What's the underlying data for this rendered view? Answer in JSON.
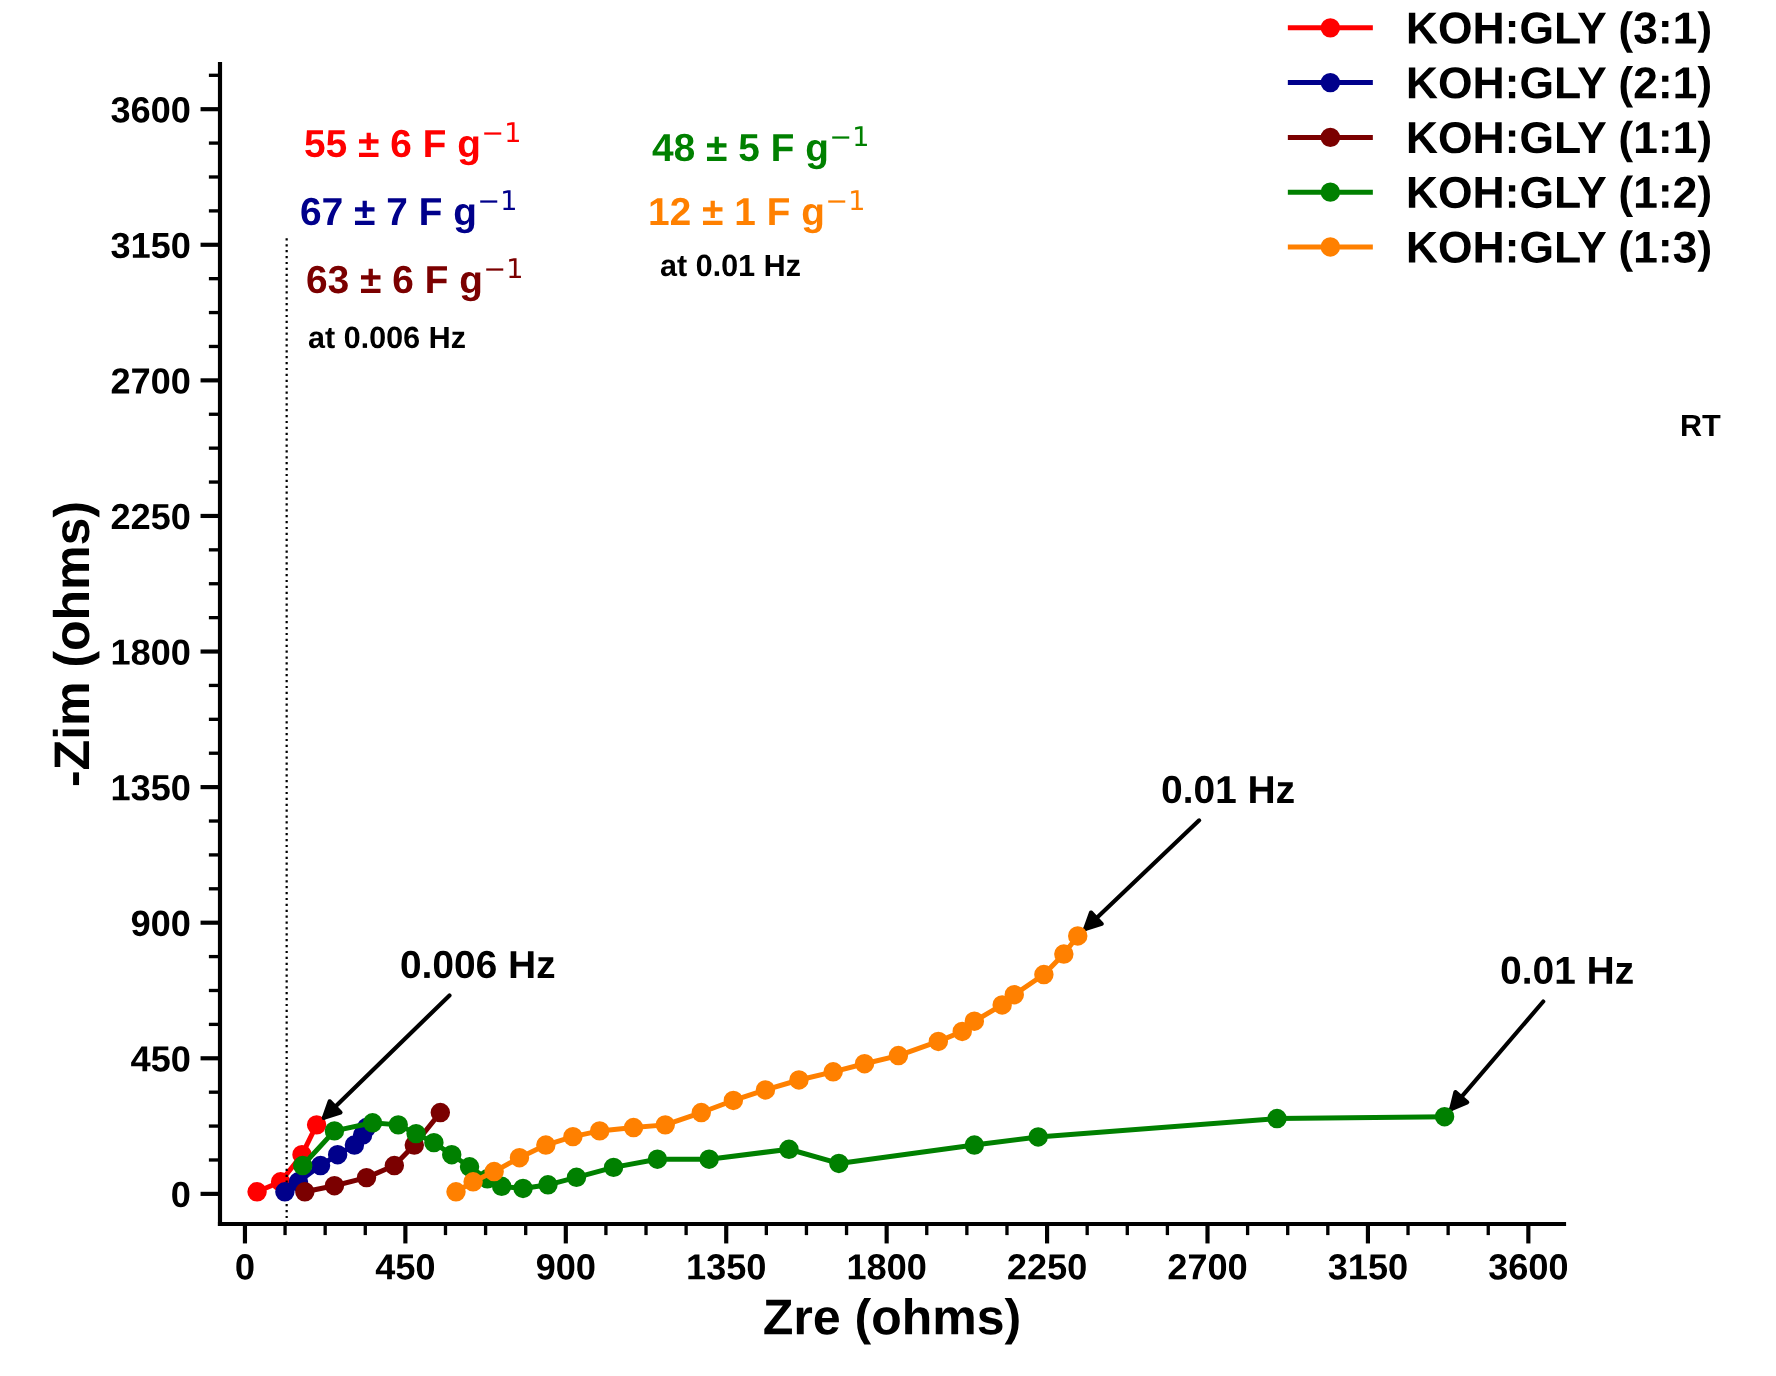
{
  "chart_data": {
    "type": "line",
    "xlabel": "Zre (ohms)",
    "ylabel": "-Zim (ohms)",
    "xlim": [
      -70,
      3700
    ],
    "ylim": [
      -100,
      3750
    ],
    "xticks": [
      0,
      450,
      900,
      1350,
      1800,
      2250,
      2700,
      3150,
      3600
    ],
    "yticks": [
      0,
      450,
      900,
      1350,
      1800,
      2250,
      2700,
      3150,
      3600
    ],
    "grid": false,
    "legend": "top right",
    "marker": "circle",
    "line_style": "solid",
    "series": [
      {
        "name": "KOH:GLY (3:1)",
        "color": "#ff0000",
        "x": [
          34,
          100,
          160,
          201
        ],
        "values": [
          7,
          40,
          130,
          229
        ]
      },
      {
        "name": "KOH:GLY (2:1)",
        "color": "#00008b",
        "x": [
          112,
          150,
          212,
          260,
          307,
          330,
          341
        ],
        "values": [
          7,
          40,
          94,
          130,
          162,
          195,
          220
        ]
      },
      {
        "name": "KOH:GLY (1:1)",
        "color": "#7b0000",
        "x": [
          168,
          251,
          341,
          419,
          475,
          548
        ],
        "values": [
          7,
          27,
          54,
          94,
          162,
          270
        ]
      },
      {
        "name": "KOH:GLY (1:2)",
        "color": "#008000",
        "x": [
          162,
          251,
          358,
          430,
          480,
          530,
          580,
          630,
          680,
          720,
          780,
          850,
          930,
          1034,
          1157,
          1302,
          1526,
          1666,
          2046,
          2225,
          2895,
          3365
        ],
        "values": [
          94,
          209,
          236,
          229,
          200,
          170,
          130,
          90,
          50,
          25,
          18,
          30,
          55,
          88,
          115,
          115,
          148,
          101,
          162,
          189,
          250,
          256
        ]
      },
      {
        "name": "KOH:GLY (1:3)",
        "color": "#ff8000",
        "x": [
          592,
          640,
          699,
          770,
          844,
          920,
          995,
          1090,
          1179,
          1280,
          1370,
          1460,
          1554,
          1650,
          1738,
          1833,
          1945,
          2012,
          2046,
          2124,
          2158,
          2241,
          2297,
          2336
        ],
        "values": [
          7,
          40,
          74,
          120,
          162,
          190,
          209,
          220,
          229,
          270,
          310,
          345,
          378,
          405,
          432,
          459,
          506,
          539,
          573,
          627,
          661,
          728,
          796,
          856
        ]
      }
    ],
    "ref_lines": [
      {
        "axis": "x",
        "value": 117,
        "line_style": "dotted",
        "color": "#000000"
      }
    ],
    "annotations": [
      "55 ± 6 F g$^{−1}$",
      "67 ± 7 F g$^{−1}$",
      "63 ± 6 F g$^{−1}$",
      "48 ± 5 F g$^{−1}$",
      "12 ± 1 F g$^{−1}$",
      "at 0.006 Hz",
      "at 0.01 Hz",
      "RT",
      {
        "text": "0.006 Hz",
        "x": 201,
        "y": 229
      },
      {
        "text": "0.01 Hz",
        "x": 2336,
        "y": 856
      },
      {
        "text": "0.01 Hz",
        "x": 3365,
        "y": 256
      }
    ]
  }
}
